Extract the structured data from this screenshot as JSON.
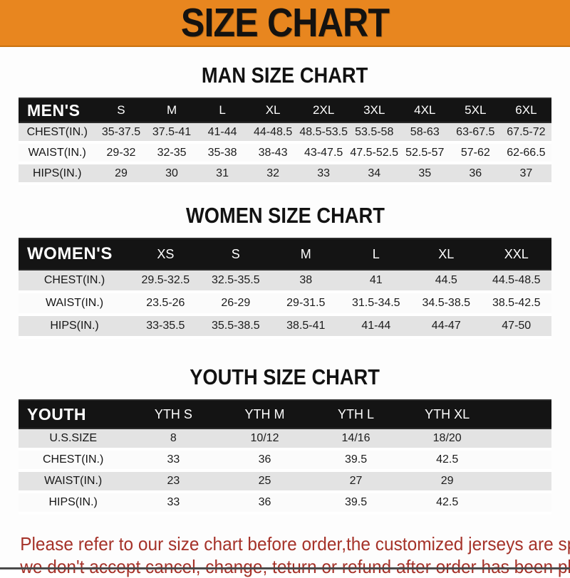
{
  "banner": {
    "title": "SIZE CHART"
  },
  "colors": {
    "banner_orange": "#E8861F",
    "header_black": "#141414",
    "row_gray": "#E3E3E3",
    "footer_red": "#A53229"
  },
  "sections": [
    {
      "id": "men",
      "title": "MAN SIZE CHART",
      "header_label": "MEN'S",
      "columns": [
        "S",
        "M",
        "L",
        "XL",
        "2XL",
        "3XL",
        "4XL",
        "5XL",
        "6XL"
      ],
      "rows": [
        {
          "label": "CHEST(IN.)",
          "values": [
            "35-37.5",
            "37.5-41",
            "41-44",
            "44-48.5",
            "48.5-53.5",
            "53.5-58",
            "58-63",
            "63-67.5",
            "67.5-72"
          ]
        },
        {
          "label": "WAIST(IN.)",
          "values": [
            "29-32",
            "32-35",
            "35-38",
            "38-43",
            "43-47.5",
            "47.5-52.5",
            "52.5-57",
            "57-62",
            "62-66.5"
          ]
        },
        {
          "label": "HIPS(IN.)",
          "values": [
            "29",
            "30",
            "31",
            "32",
            "33",
            "34",
            "35",
            "36",
            "37"
          ]
        }
      ]
    },
    {
      "id": "women",
      "title": "WOMEN SIZE CHART",
      "header_label": "WOMEN'S",
      "columns": [
        "XS",
        "S",
        "M",
        "L",
        "XL",
        "XXL"
      ],
      "rows": [
        {
          "label": "CHEST(IN.)",
          "values": [
            "29.5-32.5",
            "32.5-35.5",
            "38",
            "41",
            "44.5",
            "44.5-48.5"
          ]
        },
        {
          "label": "WAIST(IN.)",
          "values": [
            "23.5-26",
            "26-29",
            "29-31.5",
            "31.5-34.5",
            "34.5-38.5",
            "38.5-42.5"
          ]
        },
        {
          "label": "HIPS(IN.)",
          "values": [
            "33-35.5",
            "35.5-38.5",
            "38.5-41",
            "41-44",
            "44-47",
            "47-50"
          ]
        }
      ]
    },
    {
      "id": "youth",
      "title": "YOUTH SIZE CHART",
      "header_label": "YOUTH",
      "columns": [
        "YTH S",
        "YTH M",
        "YTH L",
        "YTH XL"
      ],
      "trailing_blank_column": true,
      "rows": [
        {
          "label": "U.S.SIZE",
          "values": [
            "8",
            "10/12",
            "14/16",
            "18/20"
          ]
        },
        {
          "label": "CHEST(IN.)",
          "values": [
            "33",
            "36",
            "39.5",
            "42.5"
          ]
        },
        {
          "label": "WAIST(IN.)",
          "values": [
            "23",
            "25",
            "27",
            "29"
          ]
        },
        {
          "label": "HIPS(IN.)",
          "values": [
            "33",
            "36",
            "39.5",
            "42.5"
          ]
        }
      ]
    }
  ],
  "footer": {
    "line1": "Please refer to our size chart before order,the customized jerseys are special products,",
    "line2": "we don't accept cancel, change, teturn or refund after order has been placed!"
  }
}
